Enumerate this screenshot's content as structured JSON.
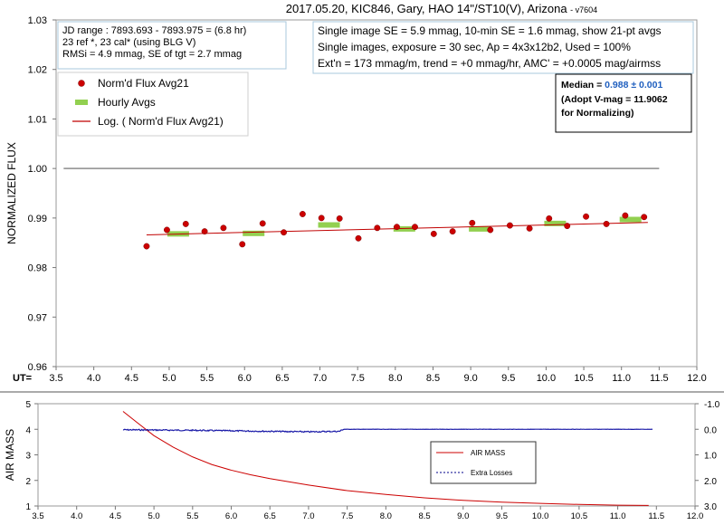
{
  "chart_data": [
    {
      "type": "scatter",
      "title": "2017.05.20, KIC846, Gary, HAO 14\"/ST10(V), Arizona",
      "version": "- v7604",
      "ylabel": "NORMALIZED FLUX",
      "x_axis_prefix": "UT=",
      "xlim": [
        3.5,
        12.0
      ],
      "ylim": [
        0.96,
        1.03
      ],
      "x_ticks": [
        "3.5",
        "4.0",
        "4.5",
        "5.0",
        "5.5",
        "6.0",
        "6.5",
        "7.0",
        "7.5",
        "8.0",
        "8.5",
        "9.0",
        "9.5",
        "10.0",
        "10.5",
        "11.0",
        "11.5",
        "12.0"
      ],
      "y_ticks": [
        "0.96",
        "0.97",
        "0.98",
        "0.99",
        "1.00",
        "1.01",
        "1.02",
        "1.03"
      ],
      "reference_line": 1.0,
      "info_box_left": [
        "JD range : 7893.693  - 7893.975  = (6.8 hr)",
        "23 ref *, 23 cal* (using BLG V)",
        "RMSi = 4.9 mmag, SE of tgt = 2.7 mmag"
      ],
      "info_box_right": [
        "Single image SE = 5.9 mmag, 10-min SE = 1.6 mmag, show 21-pt avgs",
        "Single images, exposure = 30 sec, Ap = 4x3x12b2, Used = 100%",
        "Ext'n = 173 mmag/m, trend = +0 mmag/hr, AMC' = +0.0005 mag/airmss"
      ],
      "median_box": {
        "label": "Median = ",
        "value": "0.988 ± 0.001",
        "line2": "(Adopt V-mag = 11.9062",
        "line3": " for Normalizing)"
      },
      "legend": {
        "position": "top-left",
        "items": [
          {
            "name": "Norm'd Flux Avg21",
            "color": "#cc0000",
            "kind": "dot"
          },
          {
            "name": "Hourly Avgs",
            "color": "#92d050",
            "kind": "bar"
          },
          {
            "name": "Log. ( Norm'd Flux Avg21)",
            "color": "#c00000",
            "kind": "line"
          }
        ]
      },
      "series": [
        {
          "name": "Norm'd Flux Avg21",
          "x": [
            4.7,
            4.97,
            5.22,
            5.47,
            5.72,
            5.97,
            6.24,
            6.52,
            6.77,
            7.02,
            7.26,
            7.51,
            7.76,
            8.02,
            8.26,
            8.51,
            8.76,
            9.02,
            9.26,
            9.52,
            9.78,
            10.04,
            10.28,
            10.53,
            10.8,
            11.05,
            11.3
          ],
          "y": [
            0.9843,
            0.9876,
            0.9888,
            0.9873,
            0.988,
            0.9847,
            0.9889,
            0.9871,
            0.9908,
            0.99,
            0.9899,
            0.9859,
            0.988,
            0.9882,
            0.9882,
            0.9868,
            0.9873,
            0.989,
            0.9876,
            0.9885,
            0.9879,
            0.9899,
            0.9884,
            0.9903,
            0.9888,
            0.9905,
            0.9902
          ]
        },
        {
          "name": "Hourly Avgs",
          "x": [
            5.12,
            6.12,
            7.12,
            8.12,
            9.12,
            10.12,
            11.12
          ],
          "y": [
            0.9868,
            0.9869,
            0.9886,
            0.9878,
            0.9878,
            0.9889,
            0.9897
          ]
        },
        {
          "name": "Log. ( Norm'd Flux Avg21)",
          "x": [
            4.7,
            11.35
          ],
          "y": [
            0.9866,
            0.9891
          ]
        }
      ]
    },
    {
      "type": "line",
      "ylabel": "AIR MASS",
      "xlim": [
        3.5,
        12.0
      ],
      "ylim": [
        1,
        5
      ],
      "right_ylim": [
        -1.0,
        3.0
      ],
      "x_ticks": [
        "3.5",
        "4.0",
        "4.5",
        "5.0",
        "5.5",
        "6.0",
        "6.5",
        "7.0",
        "7.5",
        "8.0",
        "8.5",
        "9.0",
        "9.5",
        "10.0",
        "10.5",
        "11.0",
        "11.5",
        "12.0"
      ],
      "y_ticks": [
        "1",
        "2",
        "3",
        "4",
        "5"
      ],
      "right_ticks": [
        "-1.0",
        "0.0",
        "1.0",
        "2.0",
        "3.0"
      ],
      "legend": {
        "position": "center-right",
        "items": [
          {
            "name": "AIR MASS",
            "color": "#cc0000",
            "kind": "line"
          },
          {
            "name": "Extra Losses",
            "color": "#00008b",
            "kind": "dash"
          }
        ]
      },
      "series": [
        {
          "name": "AIR MASS",
          "x": [
            4.6,
            4.8,
            5.0,
            5.25,
            5.5,
            5.75,
            6.0,
            6.25,
            6.5,
            7.0,
            7.5,
            8.0,
            8.5,
            9.0,
            9.5,
            10.0,
            10.5,
            11.0,
            11.4
          ],
          "y": [
            4.7,
            4.22,
            3.75,
            3.3,
            2.92,
            2.62,
            2.4,
            2.22,
            2.07,
            1.82,
            1.6,
            1.45,
            1.32,
            1.22,
            1.15,
            1.1,
            1.06,
            1.03,
            1.02
          ]
        },
        {
          "name": "Extra Losses",
          "x": [
            4.6,
            5.0,
            5.5,
            6.0,
            6.5,
            7.0,
            7.4,
            7.45,
            8.0,
            9.0,
            10.0,
            11.0,
            11.45
          ],
          "y": [
            0.02,
            0.03,
            0.04,
            0.06,
            0.08,
            0.1,
            0.08,
            0.0,
            0.0,
            0.0,
            0.0,
            0.0,
            0.0
          ]
        }
      ]
    }
  ]
}
